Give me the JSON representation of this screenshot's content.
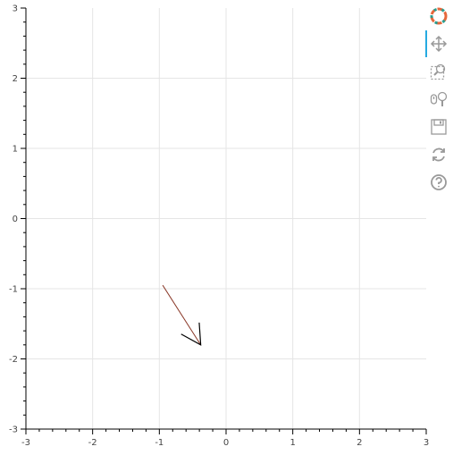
{
  "chart_data": {
    "type": "line",
    "title": "",
    "xlabel": "",
    "ylabel": "",
    "xlim": [
      -3,
      3
    ],
    "ylim": [
      -3,
      3
    ],
    "xticks": [
      "-3",
      "-2",
      "-1",
      "0",
      "1",
      "2",
      "3"
    ],
    "yticks": [
      "-3",
      "-2",
      "-1",
      "0",
      "1",
      "2",
      "3"
    ],
    "grid": true,
    "series": [
      {
        "kind": "arrow",
        "x_start": -0.95,
        "y_start": -0.95,
        "x_end": -0.38,
        "y_end": -1.8,
        "line_color": "#8b3a2a",
        "head_color": "#000000"
      }
    ]
  },
  "toolbar": {
    "tools": [
      {
        "name": "bokeh-logo-icon",
        "interactable": false
      },
      {
        "name": "pan-tool-icon",
        "interactable": true,
        "active": true
      },
      {
        "name": "box-zoom-tool-icon",
        "interactable": true
      },
      {
        "name": "wheel-zoom-tool-icon",
        "interactable": true
      },
      {
        "name": "save-tool-icon",
        "interactable": true
      },
      {
        "name": "reset-tool-icon",
        "interactable": true
      },
      {
        "name": "help-tool-icon",
        "interactable": true
      }
    ],
    "icon_color": "#999999",
    "active_color": "#26aae1"
  }
}
